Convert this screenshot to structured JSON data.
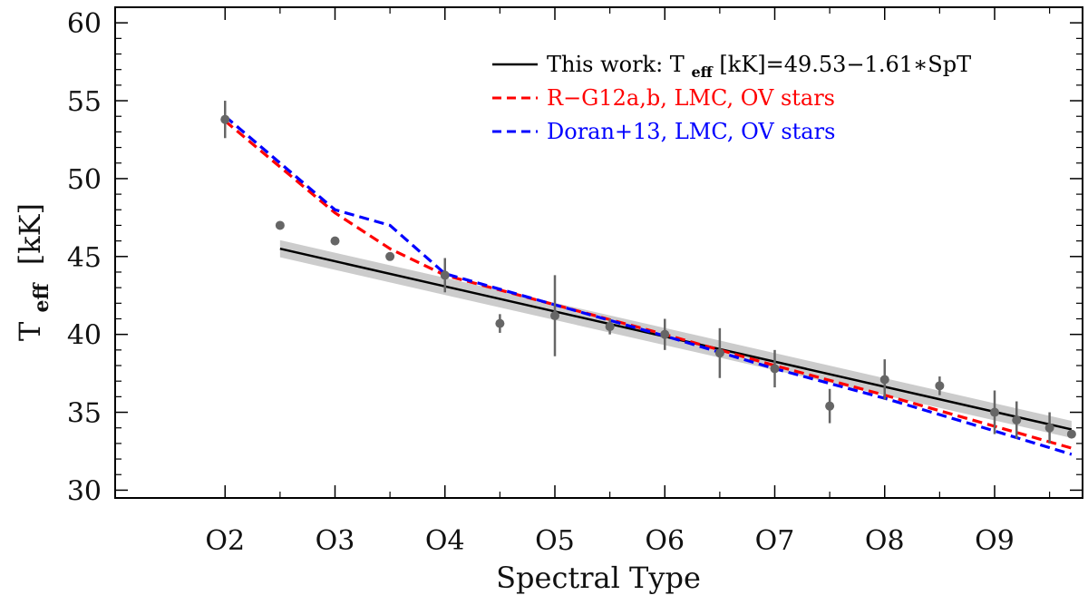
{
  "chart_data": {
    "type": "scatter",
    "xlabel": "Spectral Type",
    "ylabel_main": "T",
    "ylabel_sub": "eff",
    "ylabel_unit": "[kK]",
    "xlim": [
      1.0,
      9.8
    ],
    "ylim": [
      29.5,
      61.0
    ],
    "x_ticks": [
      {
        "value": 2,
        "label": "O2"
      },
      {
        "value": 3,
        "label": "O3"
      },
      {
        "value": 4,
        "label": "O4"
      },
      {
        "value": 5,
        "label": "O5"
      },
      {
        "value": 6,
        "label": "O6"
      },
      {
        "value": 7,
        "label": "O7"
      },
      {
        "value": 8,
        "label": "O8"
      },
      {
        "value": 9,
        "label": "O9"
      }
    ],
    "y_ticks": [
      30,
      35,
      40,
      45,
      50,
      55,
      60
    ],
    "data_points": [
      {
        "x": 2.0,
        "y": 53.8,
        "err": 1.2
      },
      {
        "x": 2.5,
        "y": 47.0,
        "err": 0
      },
      {
        "x": 3.0,
        "y": 46.0,
        "err": 0
      },
      {
        "x": 3.5,
        "y": 45.0,
        "err": 0
      },
      {
        "x": 4.0,
        "y": 43.8,
        "err": 1.1
      },
      {
        "x": 4.5,
        "y": 40.7,
        "err": 0.6
      },
      {
        "x": 5.0,
        "y": 41.2,
        "err": 2.6
      },
      {
        "x": 5.5,
        "y": 40.5,
        "err": 0.5
      },
      {
        "x": 6.0,
        "y": 40.0,
        "err": 1.0
      },
      {
        "x": 6.5,
        "y": 38.8,
        "err": 1.6
      },
      {
        "x": 7.0,
        "y": 37.8,
        "err": 1.2
      },
      {
        "x": 7.5,
        "y": 35.4,
        "err": 1.1
      },
      {
        "x": 8.0,
        "y": 37.1,
        "err": 1.3
      },
      {
        "x": 8.5,
        "y": 36.7,
        "err": 0.6
      },
      {
        "x": 9.0,
        "y": 35.0,
        "err": 1.4
      },
      {
        "x": 9.2,
        "y": 34.5,
        "err": 1.2
      },
      {
        "x": 9.5,
        "y": 34.0,
        "err": 1.0
      },
      {
        "x": 9.7,
        "y": 33.6,
        "err": 0
      }
    ],
    "fit": {
      "name": "This work: T_eff [kK]=49.53−1.61*SpT",
      "legend_prefix": "This work:  T",
      "legend_sub": "eff",
      "legend_suffix": " [kK]=49.53−1.61∗SpT",
      "color": "#000000",
      "x_range": [
        2.5,
        9.7
      ],
      "y_start": 45.5,
      "y_end": 33.9,
      "band_halfwidth": 0.55,
      "band_color": "#cccccc"
    },
    "series": [
      {
        "name": "R-G12a,b, LMC, OV stars",
        "legend_label": "R−G12a,b, LMC, OV stars",
        "color": "#ff0000",
        "style": "dashed",
        "x": [
          2.0,
          3.0,
          3.5,
          4.0,
          5.0,
          6.0,
          7.0,
          8.0,
          9.0,
          9.7
        ],
        "y": [
          53.7,
          47.8,
          45.5,
          43.8,
          41.9,
          40.0,
          38.0,
          36.1,
          34.1,
          32.7
        ]
      },
      {
        "name": "Doran+13, LMC, OV stars",
        "legend_label": "Doran+13, LMC, OV stars",
        "color": "#0000ff",
        "style": "dashed",
        "x": [
          2.0,
          3.0,
          3.5,
          4.0,
          5.0,
          6.0,
          7.0,
          8.0,
          9.0,
          9.7
        ],
        "y": [
          54.0,
          48.0,
          47.0,
          43.9,
          41.9,
          39.9,
          37.8,
          35.9,
          33.8,
          32.3
        ]
      }
    ],
    "legend_position": "top-right"
  }
}
